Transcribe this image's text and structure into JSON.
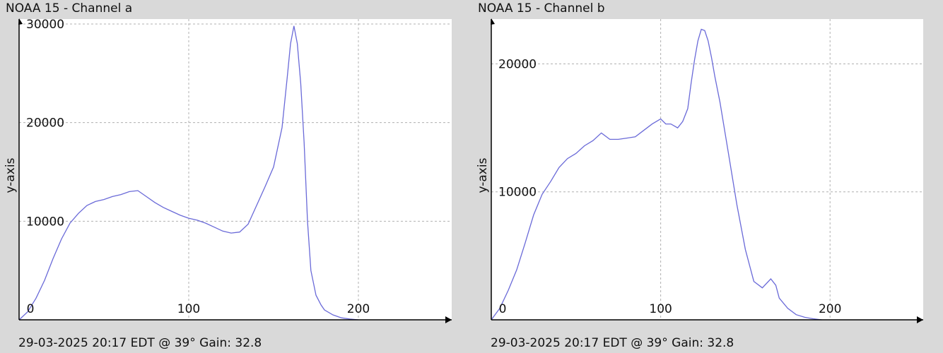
{
  "colors": {
    "line": "#6a6ad8",
    "grid": "#b0b0b0",
    "axis": "#000000",
    "plot_bg": "#ffffff",
    "page_bg": "#d9d9d9"
  },
  "chart_data": [
    {
      "type": "line",
      "title": "NOAA 15 - Channel a",
      "ylabel": "y-axis",
      "xlabel": "",
      "footer": "29-03-2025 20:17 EDT @ 39° Gain: 32.8",
      "xlim": [
        0,
        255
      ],
      "ylim": [
        0,
        30500
      ],
      "xticks": [
        0,
        100,
        200
      ],
      "yticks": [
        10000,
        20000,
        30000
      ],
      "grid": true,
      "x": [
        0,
        5,
        10,
        15,
        20,
        25,
        30,
        35,
        40,
        45,
        50,
        55,
        60,
        65,
        70,
        75,
        80,
        85,
        90,
        95,
        100,
        105,
        110,
        115,
        120,
        125,
        130,
        135,
        140,
        145,
        150,
        155,
        158,
        160,
        162,
        164,
        166,
        168,
        170,
        172,
        175,
        178,
        180,
        185,
        190,
        195,
        200
      ],
      "y": [
        0,
        800,
        2200,
        4000,
        6200,
        8200,
        9800,
        10800,
        11600,
        12000,
        12200,
        12500,
        12700,
        13000,
        13100,
        12500,
        11900,
        11400,
        11000,
        10600,
        10300,
        10100,
        9800,
        9400,
        9000,
        8800,
        8900,
        9700,
        11600,
        13500,
        15500,
        19500,
        24500,
        28000,
        29800,
        28000,
        24000,
        18000,
        10000,
        5000,
        2500,
        1500,
        1000,
        500,
        200,
        80,
        0
      ]
    },
    {
      "type": "line",
      "title": "NOAA 15 - Channel b",
      "ylabel": "y-axis",
      "xlabel": "",
      "footer": "29-03-2025 20:17 EDT @ 39° Gain: 32.8",
      "xlim": [
        0,
        255
      ],
      "ylim": [
        0,
        23500
      ],
      "xticks": [
        0,
        100,
        200
      ],
      "yticks": [
        10000,
        20000
      ],
      "grid": true,
      "x": [
        0,
        5,
        10,
        15,
        20,
        25,
        30,
        35,
        40,
        45,
        50,
        55,
        60,
        65,
        70,
        75,
        80,
        85,
        90,
        95,
        100,
        103,
        106,
        110,
        113,
        116,
        118,
        120,
        122,
        124,
        126,
        128,
        130,
        132,
        135,
        140,
        145,
        150,
        155,
        160,
        165,
        168,
        170,
        175,
        180,
        185,
        190,
        195
      ],
      "y": [
        0,
        900,
        2300,
        3900,
        6000,
        8200,
        9800,
        10800,
        11900,
        12600,
        13000,
        13600,
        14000,
        14600,
        14100,
        14100,
        14200,
        14300,
        14800,
        15300,
        15700,
        15300,
        15300,
        15000,
        15500,
        16500,
        18500,
        20300,
        21800,
        22700,
        22600,
        21800,
        20500,
        19000,
        17000,
        13000,
        9000,
        5500,
        3000,
        2500,
        3200,
        2700,
        1700,
        900,
        400,
        200,
        80,
        0
      ]
    }
  ]
}
